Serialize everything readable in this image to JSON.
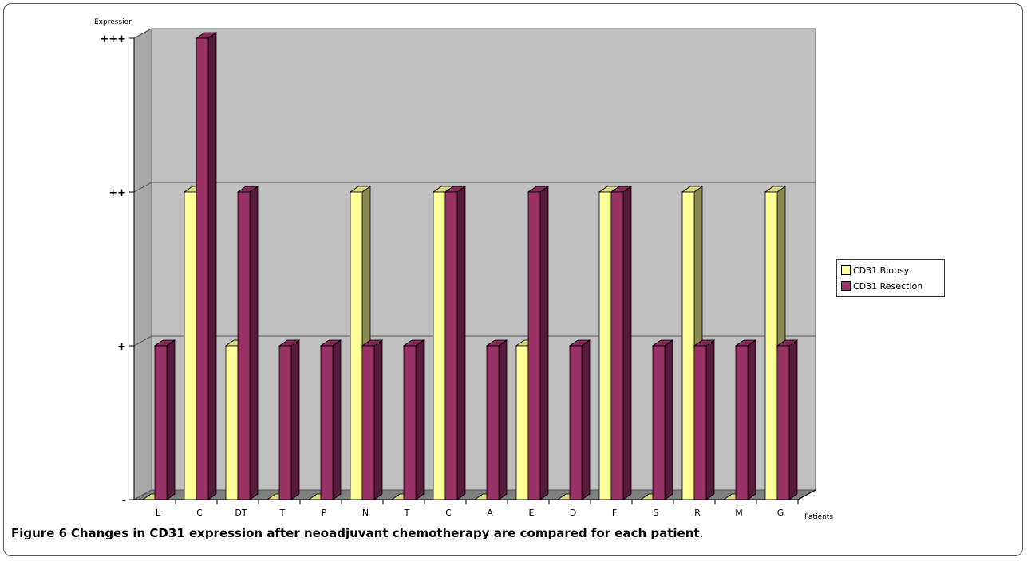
{
  "caption": {
    "label": "Figure 6",
    "text": "Changes in CD31 expression after neoadjuvant chemotherapy are compared for each patient",
    "end": "."
  },
  "chart_data": {
    "type": "bar",
    "title": "",
    "ylabel": "Expression",
    "xlabel": "Patients",
    "y_tick_labels": [
      "-",
      "+",
      "++",
      "+++"
    ],
    "ylim": [
      0,
      3
    ],
    "categories": [
      "L",
      "C",
      "DT",
      "T",
      "P",
      "N",
      "T",
      "C",
      "A",
      "E",
      "D",
      "F",
      "S",
      "R",
      "M",
      "G"
    ],
    "series": [
      {
        "name": "CD31 Biopsy",
        "values": [
          0,
          2,
          1,
          0,
          0,
          2,
          0,
          2,
          0,
          1,
          0,
          2,
          0,
          2,
          0,
          2
        ],
        "color": "#ffff99"
      },
      {
        "name": "CD31 Resection",
        "values": [
          1,
          3,
          2,
          1,
          1,
          1,
          1,
          2,
          1,
          2,
          1,
          2,
          1,
          1,
          1,
          1
        ],
        "color": "#993366"
      }
    ],
    "grid": true,
    "three_d": true,
    "legend_position": "right"
  }
}
